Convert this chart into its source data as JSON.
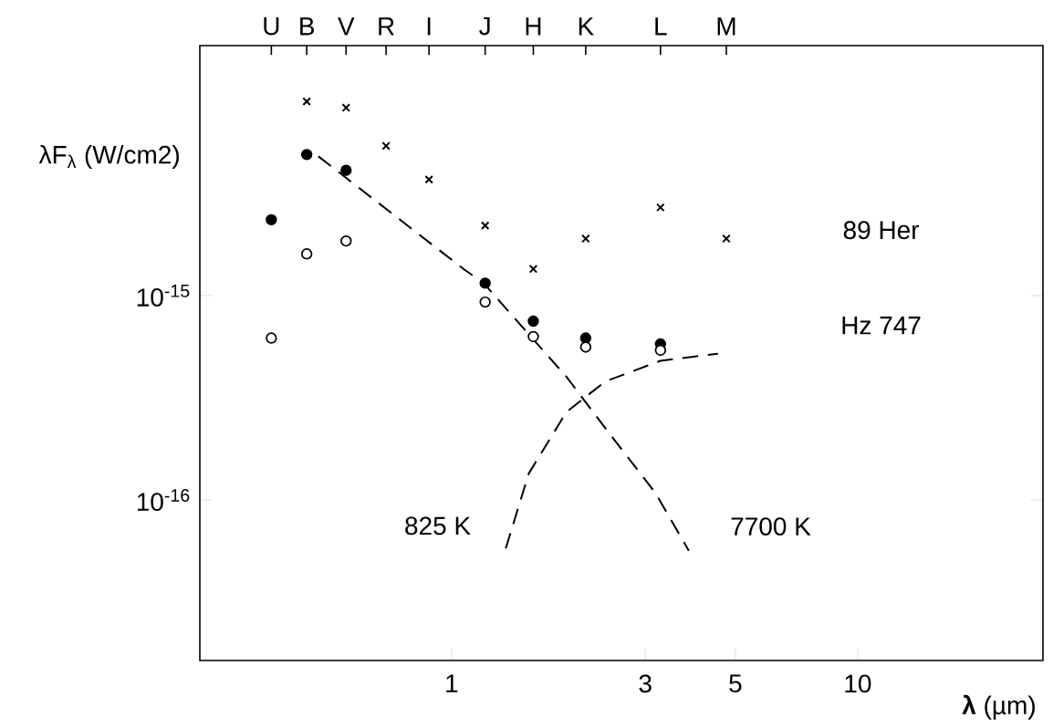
{
  "chart_data": {
    "type": "scatter",
    "xlabel": "**λ** (µm)",
    "ylabel": "λF$_{λ}$ (W/cm2)",
    "log": "xy",
    "grid": false,
    "xlim": [
      0.24,
      28.6
    ],
    "ylim": [
      1.64e-17,
      1.67e-14
    ],
    "xticks": [
      1,
      3,
      5,
      10
    ],
    "yticks": [
      {
        "value": 1e-15,
        "label": "10$^{-15}$"
      },
      {
        "value": 1e-16,
        "label": "10$^{-16}$"
      }
    ],
    "series": [
      {
        "marker": "cross",
        "color": "#000000",
        "x": [
          0.44,
          0.55,
          0.69,
          0.88,
          1.21,
          1.59,
          2.14,
          3.27,
          4.75
        ],
        "values": [
          8.9e-15,
          8.3e-15,
          5.4e-15,
          3.7e-15,
          2.2e-15,
          1.35e-15,
          1.9e-15,
          2.7e-15,
          1.9e-15
        ]
      },
      {
        "marker": "circle",
        "color": "#000000",
        "x": [
          0.36,
          0.44,
          0.55,
          1.21,
          1.59,
          2.14,
          3.27
        ],
        "values": [
          2.35e-15,
          4.9e-15,
          4.1e-15,
          1.15e-15,
          7.5e-16,
          6.2e-16,
          5.8e-16
        ]
      },
      {
        "marker": "circle",
        "color": "#ffffff",
        "x": [
          0.36,
          0.44,
          0.55,
          1.21,
          1.59,
          2.14,
          3.27
        ],
        "values": [
          6.2e-16,
          1.6e-15,
          1.85e-15,
          9.3e-16,
          6.3e-16,
          5.6e-16,
          5.4e-16
        ]
      },
      {
        "type": "line",
        "line_style": "dashed",
        "color": "#000000",
        "x": [
          0.47,
          1.07,
          1.2,
          1.92,
          2.39,
          3.17,
          3.84
        ],
        "values": [
          4.8e-15,
          1.35e-15,
          1.15e-15,
          4e-16,
          2.25e-16,
          1.09e-16,
          5.65e-17
        ]
      },
      {
        "type": "line",
        "line_style": "dashed",
        "color": "#000000",
        "x": [
          1.36,
          1.55,
          1.92,
          2.39,
          3.27,
          4.53
        ],
        "values": [
          5.8e-17,
          1.35e-16,
          2.7e-16,
          3.8e-16,
          4.8e-16,
          5.2e-16
        ]
      }
    ],
    "annotations": [
      "89 Her",
      "Hz 747",
      "825 K",
      "7700 K",
      "U",
      "B",
      "V",
      "R",
      "I",
      "J",
      "H",
      "K",
      "L",
      "M"
    ]
  }
}
